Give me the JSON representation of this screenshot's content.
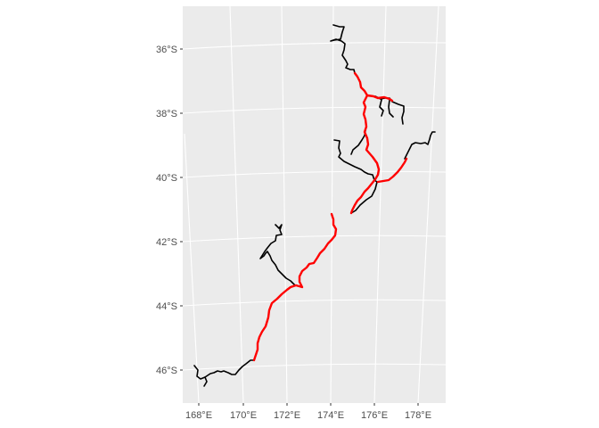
{
  "map": {
    "x_ticks": [
      {
        "value": 168,
        "label": "168°E"
      },
      {
        "value": 170,
        "label": "170°E"
      },
      {
        "value": 172,
        "label": "172°E"
      },
      {
        "value": 174,
        "label": "174°E"
      },
      {
        "value": 176,
        "label": "176°E"
      },
      {
        "value": 178,
        "label": "178°E"
      }
    ],
    "y_ticks": [
      {
        "value": -36,
        "label": "36°S"
      },
      {
        "value": -38,
        "label": "38°S"
      },
      {
        "value": -40,
        "label": "40°S"
      },
      {
        "value": -42,
        "label": "42°S"
      },
      {
        "value": -44,
        "label": "44°S"
      },
      {
        "value": -46,
        "label": "46°S"
      }
    ],
    "colors": {
      "panel_background": "#ebebeb",
      "graticule": "#ffffff",
      "network_line": "#000000",
      "highlighted_route": "#ff0000"
    },
    "layers": [
      {
        "name": "network",
        "color": "#000000"
      },
      {
        "name": "highlighted-route",
        "color": "#ff0000"
      }
    ]
  }
}
